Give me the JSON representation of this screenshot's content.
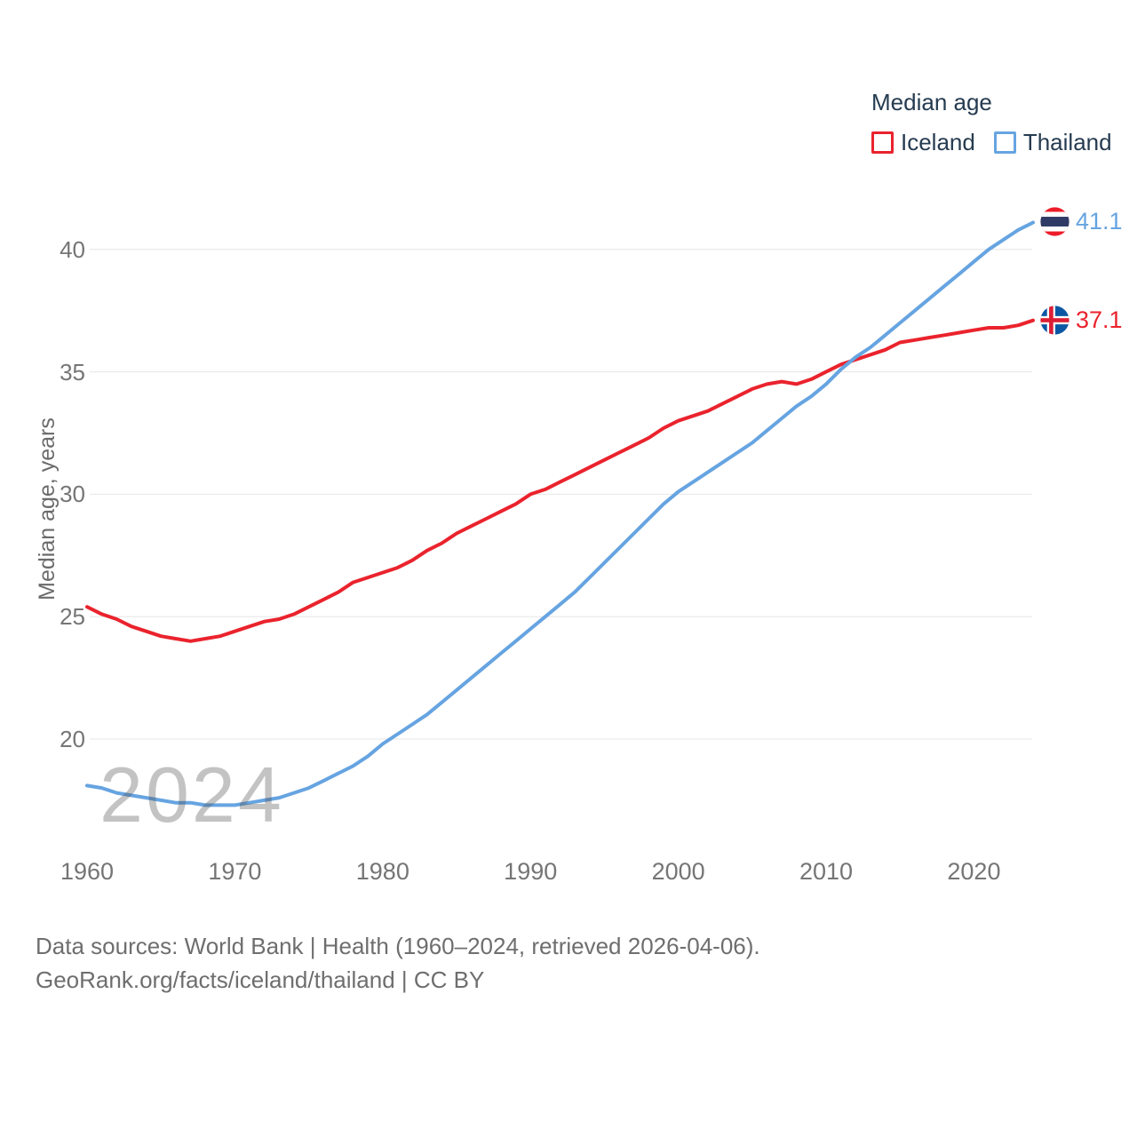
{
  "legend": {
    "title": "Median age",
    "items": [
      {
        "label": "Iceland",
        "color": "#ea232d"
      },
      {
        "label": "Thailand",
        "color": "#66a4e1"
      }
    ]
  },
  "watermark": "2024",
  "end_labels": [
    {
      "series": "Thailand",
      "value": "41.1",
      "flag": "thailand-flag"
    },
    {
      "series": "Iceland",
      "value": "37.1",
      "flag": "iceland-flag"
    }
  ],
  "footer": {
    "line1": "Data sources: World Bank | Health (1960–2024, retrieved 2026-04-06).",
    "line2": "GeoRank.org/facts/iceland/thailand | CC BY"
  },
  "colors": {
    "iceland_line": "#ea232d",
    "thailand_line": "#66a4e1",
    "legend_text": "#263b50",
    "tick_text": "#757575",
    "axis_title_text": "#6b6b6b",
    "footer_text": "#6e6e6e",
    "gridline": "#e6e6e6",
    "watermark": "#c6c6c6"
  },
  "chart_data": {
    "type": "line",
    "title": "Median age",
    "xlabel": "",
    "ylabel": "Median age, years",
    "x_ticks": [
      1960,
      1970,
      1980,
      1990,
      2000,
      2010,
      2020
    ],
    "y_ticks": [
      20,
      25,
      30,
      35,
      40
    ],
    "x_range": [
      1960,
      2024
    ],
    "ylim": [
      17,
      42
    ],
    "grid": true,
    "legend_position": "top-right",
    "years": [
      1960,
      1961,
      1962,
      1963,
      1964,
      1965,
      1966,
      1967,
      1968,
      1969,
      1970,
      1971,
      1972,
      1973,
      1974,
      1975,
      1976,
      1977,
      1978,
      1979,
      1980,
      1981,
      1982,
      1983,
      1984,
      1985,
      1986,
      1987,
      1988,
      1989,
      1990,
      1991,
      1992,
      1993,
      1994,
      1995,
      1996,
      1997,
      1998,
      1999,
      2000,
      2001,
      2002,
      2003,
      2004,
      2005,
      2006,
      2007,
      2008,
      2009,
      2010,
      2011,
      2012,
      2013,
      2014,
      2015,
      2016,
      2017,
      2018,
      2019,
      2020,
      2021,
      2022,
      2023,
      2024
    ],
    "series": [
      {
        "name": "Iceland",
        "color": "#ea232d",
        "end_value": 37.1,
        "values": [
          25.4,
          25.1,
          24.9,
          24.6,
          24.4,
          24.2,
          24.1,
          24.0,
          24.1,
          24.2,
          24.4,
          24.6,
          24.8,
          24.9,
          25.1,
          25.4,
          25.7,
          26.0,
          26.4,
          26.6,
          26.8,
          27.0,
          27.3,
          27.7,
          28.0,
          28.4,
          28.7,
          29.0,
          29.3,
          29.6,
          30.0,
          30.2,
          30.5,
          30.8,
          31.1,
          31.4,
          31.7,
          32.0,
          32.3,
          32.7,
          33.0,
          33.2,
          33.4,
          33.7,
          34.0,
          34.3,
          34.5,
          34.6,
          34.5,
          34.7,
          35.0,
          35.3,
          35.5,
          35.7,
          35.9,
          36.2,
          36.3,
          36.4,
          36.5,
          36.6,
          36.7,
          36.8,
          36.8,
          36.9,
          37.1
        ]
      },
      {
        "name": "Thailand",
        "color": "#66a4e1",
        "end_value": 41.1,
        "values": [
          18.1,
          18.0,
          17.8,
          17.7,
          17.6,
          17.5,
          17.4,
          17.4,
          17.3,
          17.3,
          17.3,
          17.4,
          17.5,
          17.6,
          17.8,
          18.0,
          18.3,
          18.6,
          18.9,
          19.3,
          19.8,
          20.2,
          20.6,
          21.0,
          21.5,
          22.0,
          22.5,
          23.0,
          23.5,
          24.0,
          24.5,
          25.0,
          25.5,
          26.0,
          26.6,
          27.2,
          27.8,
          28.4,
          29.0,
          29.6,
          30.1,
          30.5,
          30.9,
          31.3,
          31.7,
          32.1,
          32.6,
          33.1,
          33.6,
          34.0,
          34.5,
          35.1,
          35.6,
          36.0,
          36.5,
          37.0,
          37.5,
          38.0,
          38.5,
          39.0,
          39.5,
          40.0,
          40.4,
          40.8,
          41.1
        ]
      }
    ]
  }
}
